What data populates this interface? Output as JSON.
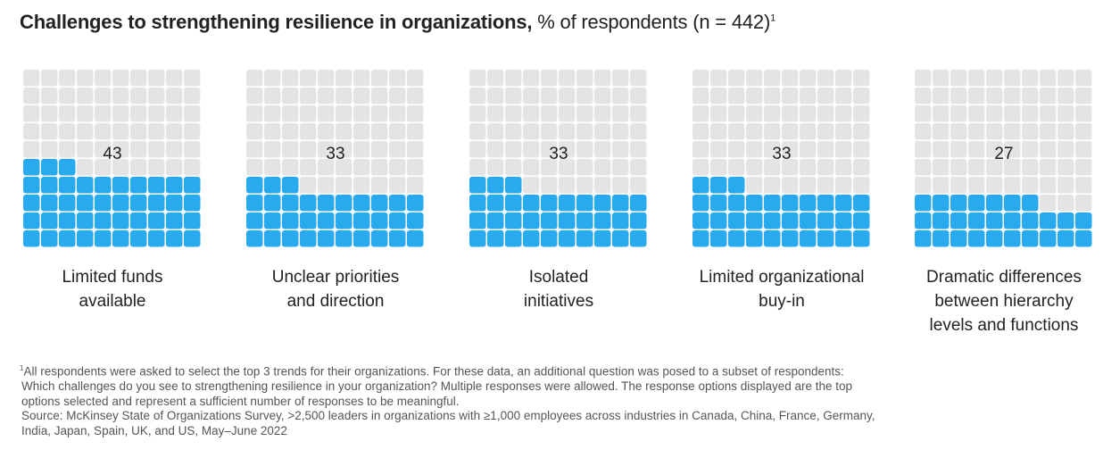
{
  "title": {
    "bold": "Challenges to strengthening resilience in organizations,",
    "normal": "% of respondents (n = 442)",
    "footnote_marker": "1"
  },
  "colors": {
    "filled": "#2aaaee",
    "empty": "#e4e4e4"
  },
  "chart_data": {
    "type": "waffle",
    "grid": {
      "rows": 10,
      "cols": 10
    },
    "title": "Challenges to strengthening resilience in organizations, % of respondents (n = 442)",
    "categories": [
      "Limited funds available",
      "Unclear priorities and direction",
      "Isolated initiatives",
      "Limited organizational buy-in",
      "Dramatic differences between hierarchy levels and functions"
    ],
    "values": [
      43,
      33,
      33,
      33,
      27
    ],
    "items": [
      {
        "value": 43,
        "value_label": "43",
        "label_lines": [
          "Limited funds",
          "available"
        ]
      },
      {
        "value": 33,
        "value_label": "33",
        "label_lines": [
          "Unclear priorities",
          "and direction"
        ]
      },
      {
        "value": 33,
        "value_label": "33",
        "label_lines": [
          "Isolated",
          "initiatives"
        ]
      },
      {
        "value": 33,
        "value_label": "33",
        "label_lines": [
          "Limited organizational",
          "buy-in"
        ]
      },
      {
        "value": 27,
        "value_label": "27",
        "label_lines": [
          "Dramatic differences",
          "between hierarchy",
          "levels and functions"
        ]
      }
    ]
  },
  "footnote": {
    "marker": "1",
    "line1": "All respondents were asked to select the top 3 trends for their organizations. For these data, an additional question was posed to a subset of respondents:",
    "line2": "Which challenges do you see to strengthening resilience in your organization? Multiple responses were allowed. The response options displayed are the top",
    "line3": "options selected and represent a sufficient number of responses to be meaningful.",
    "source1": "Source: McKinsey State of Organizations Survey, >2,500 leaders in organizations with ≥1,000 employees across industries in Canada, China, France, Germany,",
    "source2": "India, Japan, Spain, UK, and US, May–June 2022"
  }
}
